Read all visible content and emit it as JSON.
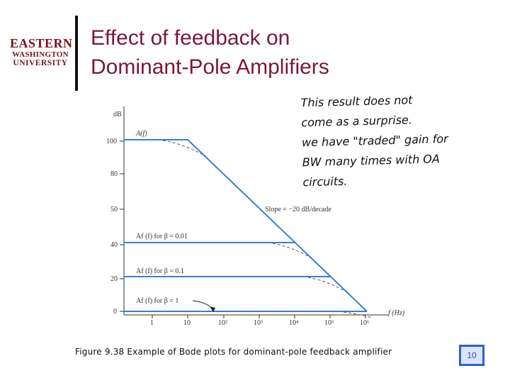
{
  "header": {
    "logo": {
      "line1": "EASTERN",
      "line2": "WASHINGTON",
      "line3": "UNIVERSITY"
    },
    "title_line1": "Effect of feedback on",
    "title_line2": "Dominant-Pole Amplifiers"
  },
  "handwritten_note": {
    "lines": [
      "This result does not",
      "come as a surprise.",
      "we have \"traded\" gain for",
      "BW many times with OA",
      "circuits."
    ]
  },
  "figure": {
    "y_unit": "dB",
    "y_ticks": [
      "100",
      "80",
      "50",
      "40",
      "20",
      "0"
    ],
    "x_ticks": [
      "1",
      "10",
      "10²",
      "10³",
      "10⁴",
      "10⁵",
      "10⁶"
    ],
    "x_label": "f (Hz)",
    "curve_labels": {
      "open_loop": "A(f)",
      "beta_001": "Af (f) for β = 0.01",
      "beta_01": "Af (f) for β = 0.1",
      "beta_1": "Af (f) for β = 1"
    },
    "slope_label": "Slope = −20 dB/decade",
    "curves": [
      {
        "name": "open_loop",
        "gain_db": 100,
        "corner_hz": 10
      },
      {
        "name": "beta_001",
        "gain_db": 40,
        "corner_hz": 10000
      },
      {
        "name": "beta_01",
        "gain_db": 20,
        "corner_hz": 100000
      },
      {
        "name": "beta_1",
        "gain_db": 0,
        "corner_hz": 1000000
      }
    ]
  },
  "caption": "Figure 9.38 Example of Bode plots for dominant-pole feedback amplifier",
  "page_number": "10"
}
